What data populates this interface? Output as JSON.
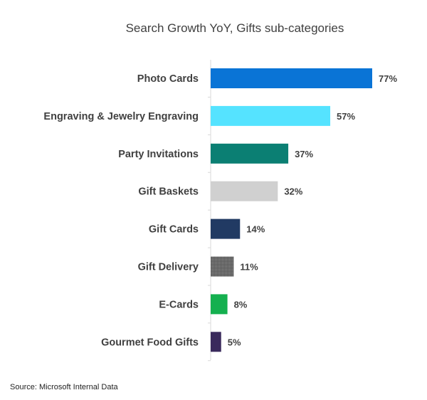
{
  "chart_data": {
    "type": "bar",
    "orientation": "horizontal",
    "title": "Search Growth YoY, Gifts sub-categories",
    "categories": [
      "Photo Cards",
      "Engraving & Jewelry Engraving",
      "Party Invitations",
      "Gift Baskets",
      "Gift Cards",
      "Gift Delivery",
      "E-Cards",
      "Gourmet Food Gifts"
    ],
    "values": [
      77,
      57,
      37,
      32,
      14,
      11,
      8,
      5
    ],
    "data_labels": [
      "77%",
      "57%",
      "37%",
      "32%",
      "14%",
      "11%",
      "8%",
      "5%"
    ],
    "colors": [
      "#0a74d6",
      "#55e3ff",
      "#0b7f73",
      "#d0d0d0",
      "#213a63",
      "#6f6f6f",
      "#14b04f",
      "#3a2a5c"
    ],
    "xlim": [
      0,
      77
    ],
    "grid": false,
    "legend": "none"
  },
  "source": "Source:  Microsoft Internal Data"
}
